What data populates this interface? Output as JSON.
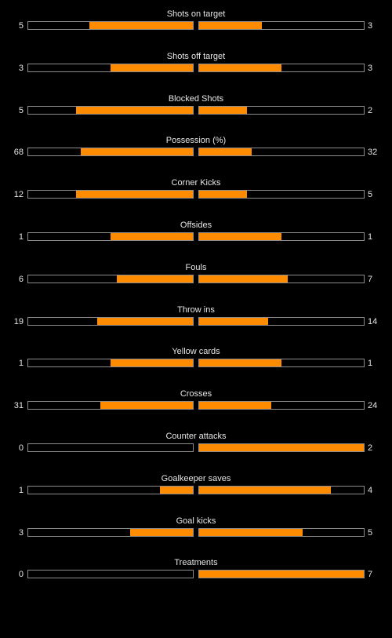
{
  "colors": {
    "background": "#000000",
    "bar_fill": "#ff8c00",
    "bar_border": "#8c8c8c",
    "text": "#e6e6e6"
  },
  "stats": [
    {
      "label": "Shots on target",
      "home": "5",
      "away": "3",
      "home_fill": 0.63,
      "away_fill": 0.38
    },
    {
      "label": "Shots off target",
      "home": "3",
      "away": "3",
      "home_fill": 0.5,
      "away_fill": 0.5
    },
    {
      "label": "Blocked Shots",
      "home": "5",
      "away": "2",
      "home_fill": 0.71,
      "away_fill": 0.29
    },
    {
      "label": "Possession (%)",
      "home": "68",
      "away": "32",
      "home_fill": 0.68,
      "away_fill": 0.32
    },
    {
      "label": "Corner Kicks",
      "home": "12",
      "away": "5",
      "home_fill": 0.71,
      "away_fill": 0.29
    },
    {
      "label": "Offsides",
      "home": "1",
      "away": "1",
      "home_fill": 0.5,
      "away_fill": 0.5
    },
    {
      "label": "Fouls",
      "home": "6",
      "away": "7",
      "home_fill": 0.46,
      "away_fill": 0.54
    },
    {
      "label": "Throw ins",
      "home": "19",
      "away": "14",
      "home_fill": 0.58,
      "away_fill": 0.42
    },
    {
      "label": "Yellow cards",
      "home": "1",
      "away": "1",
      "home_fill": 0.5,
      "away_fill": 0.5
    },
    {
      "label": "Crosses",
      "home": "31",
      "away": "24",
      "home_fill": 0.56,
      "away_fill": 0.44
    },
    {
      "label": "Counter attacks",
      "home": "0",
      "away": "2",
      "home_fill": 0.0,
      "away_fill": 1.0
    },
    {
      "label": "Goalkeeper saves",
      "home": "1",
      "away": "4",
      "home_fill": 0.2,
      "away_fill": 0.8
    },
    {
      "label": "Goal kicks",
      "home": "3",
      "away": "5",
      "home_fill": 0.38,
      "away_fill": 0.63
    },
    {
      "label": "Treatments",
      "home": "0",
      "away": "7",
      "home_fill": 0.0,
      "away_fill": 1.0
    }
  ]
}
